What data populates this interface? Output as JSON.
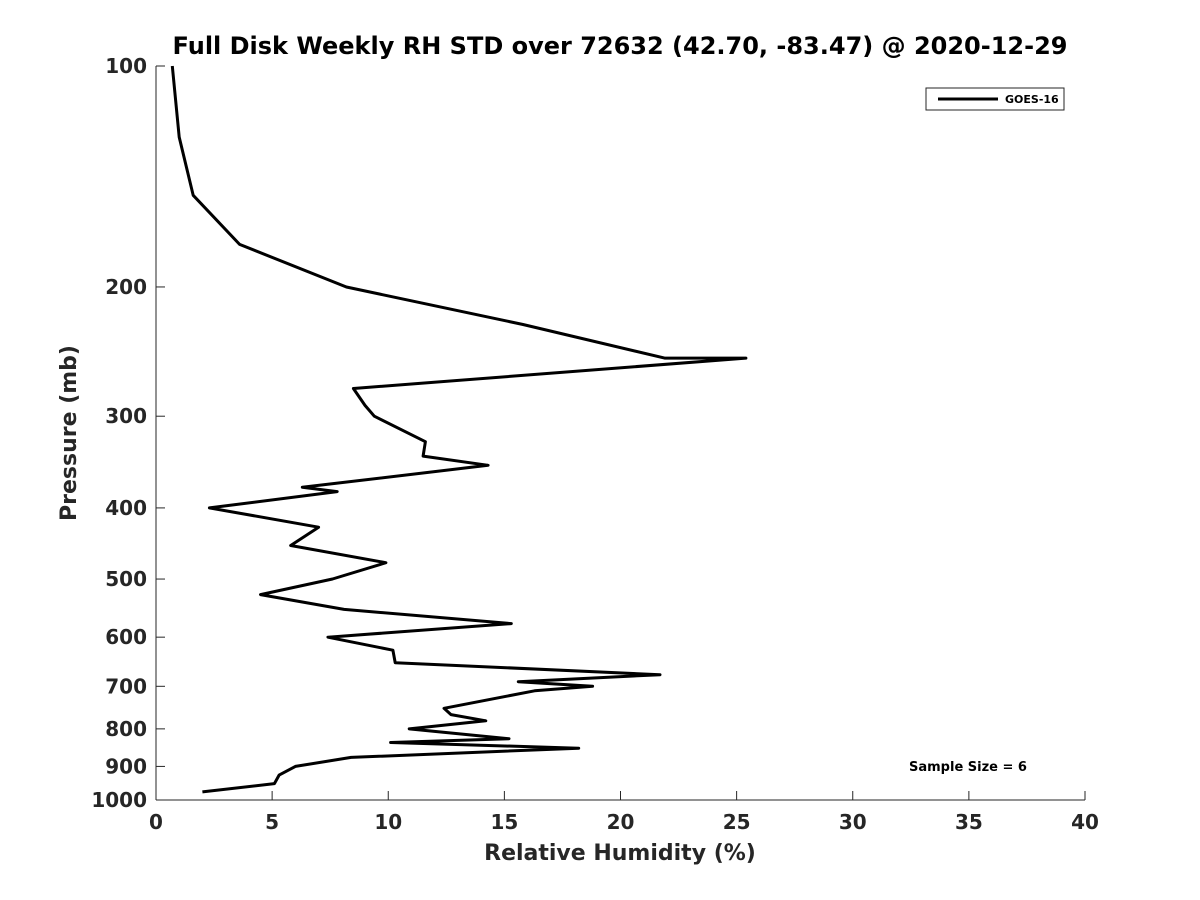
{
  "chart_data": {
    "type": "line",
    "title": "Full Disk Weekly RH STD over 72632 (42.70, -83.47) @ 2020-12-29",
    "xlabel": "Relative Humidity (%)",
    "ylabel": "Pressure (mb)",
    "xlim": [
      0,
      40
    ],
    "ylim": [
      100,
      1000
    ],
    "y_scale": "log",
    "y_reversed": true,
    "x_ticks": [
      0,
      5,
      10,
      15,
      20,
      25,
      30,
      35,
      40
    ],
    "x_tick_labels": [
      "0",
      "5",
      "10",
      "15",
      "20",
      "25",
      "30",
      "35",
      "40"
    ],
    "y_ticks": [
      100,
      200,
      300,
      400,
      500,
      600,
      700,
      800,
      900,
      1000
    ],
    "y_tick_labels": [
      "100",
      "200",
      "300",
      "400",
      "500",
      "600",
      "700",
      "800",
      "900",
      "1000"
    ],
    "grid": false,
    "legend": {
      "position": "top-right",
      "entries": [
        "GOES-16"
      ]
    },
    "annotation": "Sample Size = 6",
    "series": [
      {
        "name": "GOES-16",
        "color": "#000000",
        "x": [
          0.7,
          1.0,
          1.6,
          3.6,
          8.2,
          15.8,
          21.9,
          25.4,
          8.5,
          9.0,
          9.4,
          11.6,
          11.5,
          14.3,
          6.3,
          7.8,
          2.3,
          7.0,
          5.8,
          9.9,
          7.6,
          4.5,
          8.1,
          15.3,
          7.4,
          10.2,
          10.3,
          21.7,
          15.6,
          18.8,
          16.3,
          12.4,
          12.7,
          14.2,
          10.9,
          15.2,
          10.1,
          18.2,
          8.4,
          6.0,
          5.3,
          5.1,
          2.0
        ],
        "y": [
          100,
          125,
          150,
          175,
          200,
          225,
          250,
          250,
          275,
          290,
          300,
          325,
          340,
          350,
          375,
          380,
          400,
          425,
          450,
          475,
          500,
          525,
          550,
          575,
          600,
          625,
          650,
          675,
          690,
          700,
          710,
          750,
          765,
          780,
          800,
          825,
          835,
          850,
          875,
          900,
          925,
          950,
          975
        ]
      }
    ]
  }
}
